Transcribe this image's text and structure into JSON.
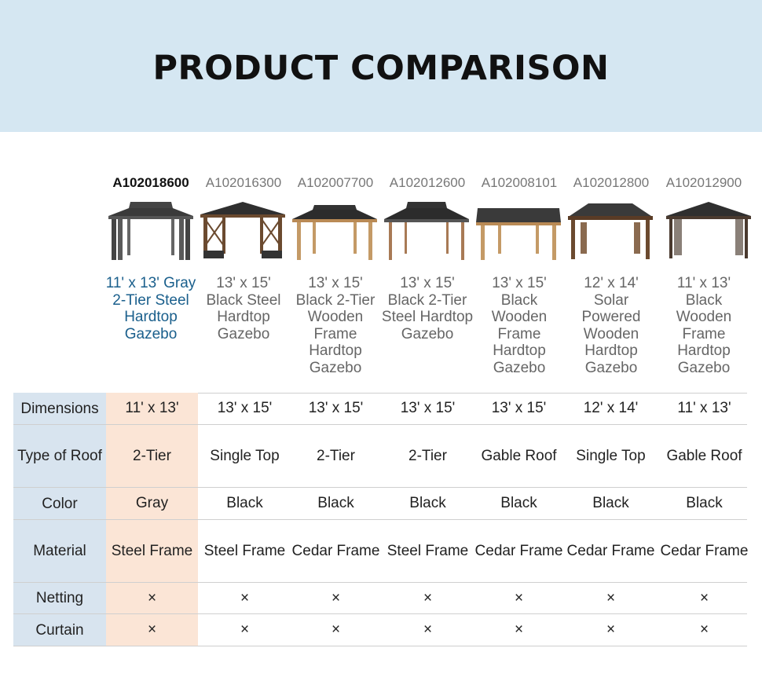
{
  "banner": {
    "title": "PRODUCT COMPARISON"
  },
  "products": [
    {
      "sku": "A102018600",
      "title": "11' x 13' Gray 2-Tier Steel Hardtop Gazebo"
    },
    {
      "sku": "A102016300",
      "title": "13' x 15' Black Steel Hardtop Gazebo"
    },
    {
      "sku": "A102007700",
      "title": "13' x 15' Black 2-Tier Wooden Frame Hardtop Gazebo"
    },
    {
      "sku": "A102012600",
      "title": "13' x 15' Black 2-Tier Steel Hardtop Gazebo"
    },
    {
      "sku": "A102008101",
      "title": "13' x 15' Black Wooden Frame Hardtop Gazebo"
    },
    {
      "sku": "A102012800",
      "title": "12' x 14' Solar Powered Wooden Hardtop Gazebo"
    },
    {
      "sku": "A102012900",
      "title": "11' x 13' Black Wooden Frame Hardtop Gazebo"
    }
  ],
  "table": {
    "rows": [
      {
        "label": "Dimensions",
        "values": [
          "11' x 13'",
          "13' x 15'",
          "13' x 15'",
          "13' x 15'",
          "13' x 15'",
          "12' x 14'",
          "11' x 13'"
        ]
      },
      {
        "label": "Type of Roof",
        "values": [
          "2-Tier",
          "Single Top",
          "2-Tier",
          "2-Tier",
          "Gable Roof",
          "Single Top",
          "Gable Roof"
        ]
      },
      {
        "label": "Color",
        "values": [
          "Gray",
          "Black",
          "Black",
          "Black",
          "Black",
          "Black",
          "Black"
        ]
      },
      {
        "label": "Material",
        "values": [
          "Steel Frame",
          "Steel Frame",
          "Cedar Frame",
          "Steel Frame",
          "Cedar Frame",
          "Cedar Frame",
          "Cedar Frame"
        ]
      },
      {
        "label": "Netting",
        "values": [
          "×",
          "×",
          "×",
          "×",
          "×",
          "×",
          "×"
        ]
      },
      {
        "label": "Curtain",
        "values": [
          "×",
          "×",
          "×",
          "×",
          "×",
          "×",
          "×"
        ]
      }
    ]
  },
  "colors": {
    "banner_bg": "#d5e7f2",
    "header_col_bg": "#d8e4ef",
    "highlight_col_bg": "#fbe5d6",
    "active_title": "#1a5f8c"
  }
}
